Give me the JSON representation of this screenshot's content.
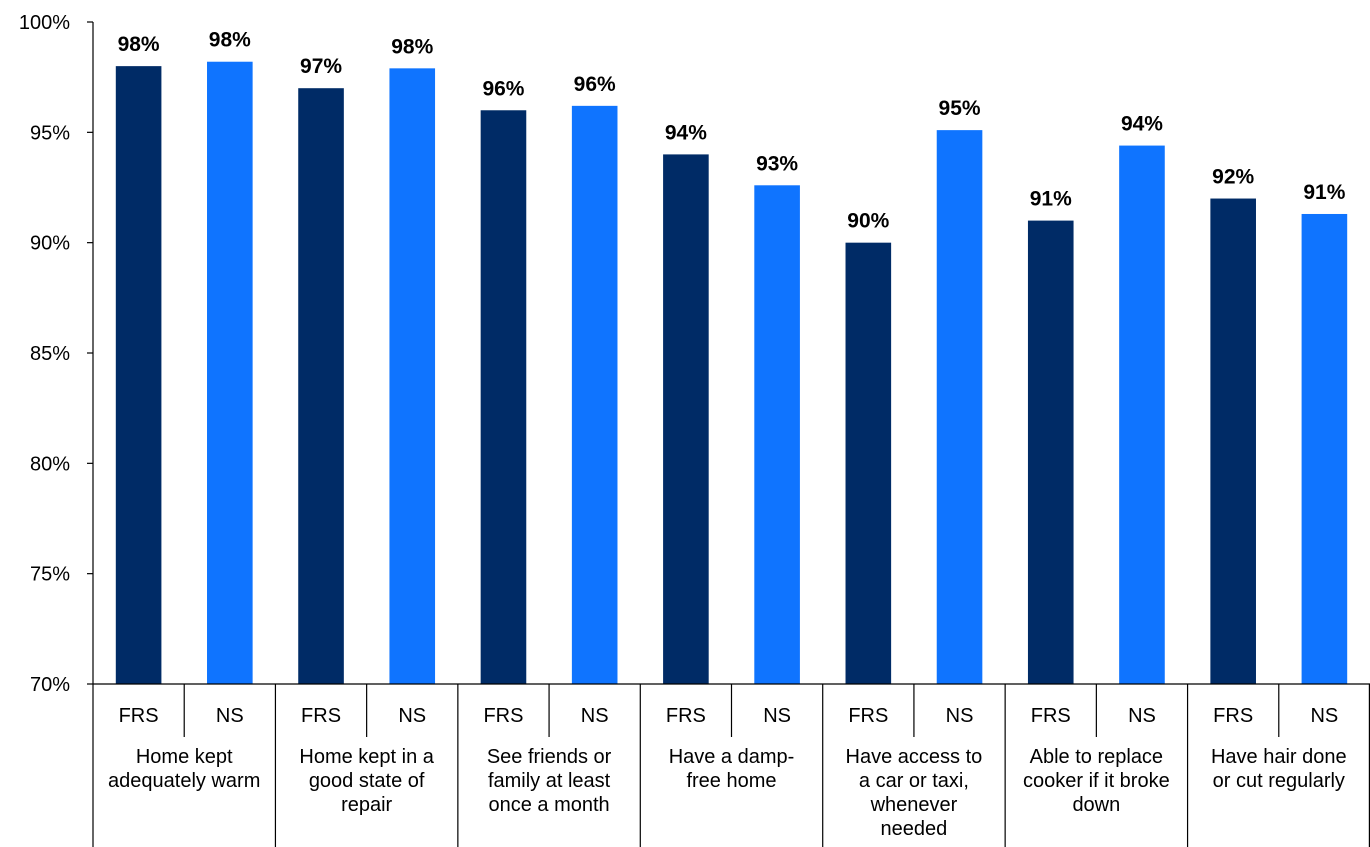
{
  "chart_data": {
    "type": "bar",
    "groups": [
      {
        "label_lines": [
          "Home kept",
          "adequately warm"
        ],
        "bars": [
          {
            "series": "FRS",
            "value": 98,
            "label": "98%"
          },
          {
            "series": "NS",
            "value": 98.2,
            "label": "98%"
          }
        ]
      },
      {
        "label_lines": [
          "Home kept in a",
          "good state of",
          "repair"
        ],
        "bars": [
          {
            "series": "FRS",
            "value": 97,
            "label": "97%"
          },
          {
            "series": "NS",
            "value": 97.9,
            "label": "98%"
          }
        ]
      },
      {
        "label_lines": [
          "See friends or",
          "family at least",
          "once a month"
        ],
        "bars": [
          {
            "series": "FRS",
            "value": 96,
            "label": "96%"
          },
          {
            "series": "NS",
            "value": 96.2,
            "label": "96%"
          }
        ]
      },
      {
        "label_lines": [
          "Have a damp-",
          "free home"
        ],
        "bars": [
          {
            "series": "FRS",
            "value": 94,
            "label": "94%"
          },
          {
            "series": "NS",
            "value": 92.6,
            "label": "93%"
          }
        ]
      },
      {
        "label_lines": [
          "Have access to",
          "a car or taxi,",
          "whenever",
          "needed"
        ],
        "bars": [
          {
            "series": "FRS",
            "value": 90,
            "label": "90%"
          },
          {
            "series": "NS",
            "value": 95.1,
            "label": "95%"
          }
        ]
      },
      {
        "label_lines": [
          "Able to replace",
          "cooker if it broke",
          "down"
        ],
        "bars": [
          {
            "series": "FRS",
            "value": 91,
            "label": "91%"
          },
          {
            "series": "NS",
            "value": 94.4,
            "label": "94%"
          }
        ]
      },
      {
        "label_lines": [
          "Have hair done",
          "or cut regularly"
        ],
        "bars": [
          {
            "series": "FRS",
            "value": 92,
            "label": "92%"
          },
          {
            "series": "NS",
            "value": 91.3,
            "label": "91%"
          }
        ]
      }
    ],
    "series": [
      {
        "name": "FRS",
        "color": "#002b66"
      },
      {
        "name": "NS",
        "color": "#0f74ff"
      }
    ],
    "ylim": [
      70,
      100
    ],
    "yticks": [
      "70%",
      "75%",
      "80%",
      "85%",
      "90%",
      "95%",
      "100%"
    ],
    "grid": false,
    "legend": "none"
  }
}
